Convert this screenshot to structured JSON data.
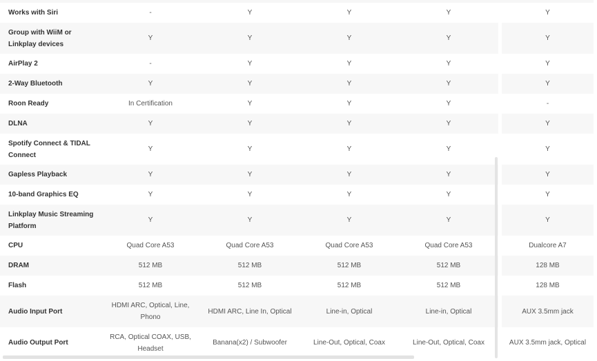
{
  "rows": [
    {
      "label": "Works with Siri",
      "values": [
        "-",
        "Y",
        "Y",
        "Y",
        "Y"
      ]
    },
    {
      "label": "Group with WiiM or Linkplay devices",
      "values": [
        "Y",
        "Y",
        "Y",
        "Y",
        "Y"
      ]
    },
    {
      "label": "AirPlay 2",
      "values": [
        "-",
        "Y",
        "Y",
        "Y",
        "Y"
      ]
    },
    {
      "label": "2-Way Bluetooth",
      "values": [
        "Y",
        "Y",
        "Y",
        "Y",
        "Y"
      ]
    },
    {
      "label": "Roon Ready",
      "values": [
        "In Certification",
        "Y",
        "Y",
        "Y",
        "-"
      ]
    },
    {
      "label": "DLNA",
      "values": [
        "Y",
        "Y",
        "Y",
        "Y",
        "Y"
      ]
    },
    {
      "label": "Spotify Connect & TIDAL Connect",
      "values": [
        "Y",
        "Y",
        "Y",
        "Y",
        "Y"
      ]
    },
    {
      "label": "Gapless Playback",
      "values": [
        "Y",
        "Y",
        "Y",
        "Y",
        "Y"
      ]
    },
    {
      "label": "10-band Graphics EQ",
      "values": [
        "Y",
        "Y",
        "Y",
        "Y",
        "Y"
      ]
    },
    {
      "label": "Linkplay Music Streaming Platform",
      "values": [
        "Y",
        "Y",
        "Y",
        "Y",
        "Y"
      ]
    },
    {
      "label": "CPU",
      "values": [
        "Quad Core A53",
        "Quad Core A53",
        "Quad Core A53",
        "Quad Core A53",
        "Dualcore A7"
      ]
    },
    {
      "label": "DRAM",
      "values": [
        "512 MB",
        "512 MB",
        "512 MB",
        "512 MB",
        "128 MB"
      ]
    },
    {
      "label": "Flash",
      "values": [
        "512 MB",
        "512 MB",
        "512 MB",
        "512 MB",
        "128 MB"
      ]
    },
    {
      "label": "Audio Input Port",
      "values": [
        "HDMI ARC, Optical, Line, Phono",
        "HDMI ARC, Line In, Optical",
        "Line-in, Optical",
        "Line-in, Optical",
        "AUX 3.5mm jack"
      ]
    },
    {
      "label": "Audio Output Port",
      "values": [
        "RCA, Optical COAX, USB, Headset",
        "Banana(x2) / Subwoofer",
        "Line-Out, Optical, Coax",
        "Line-Out, Optical, Coax",
        "AUX 3.5mm jack, Optical"
      ]
    }
  ]
}
